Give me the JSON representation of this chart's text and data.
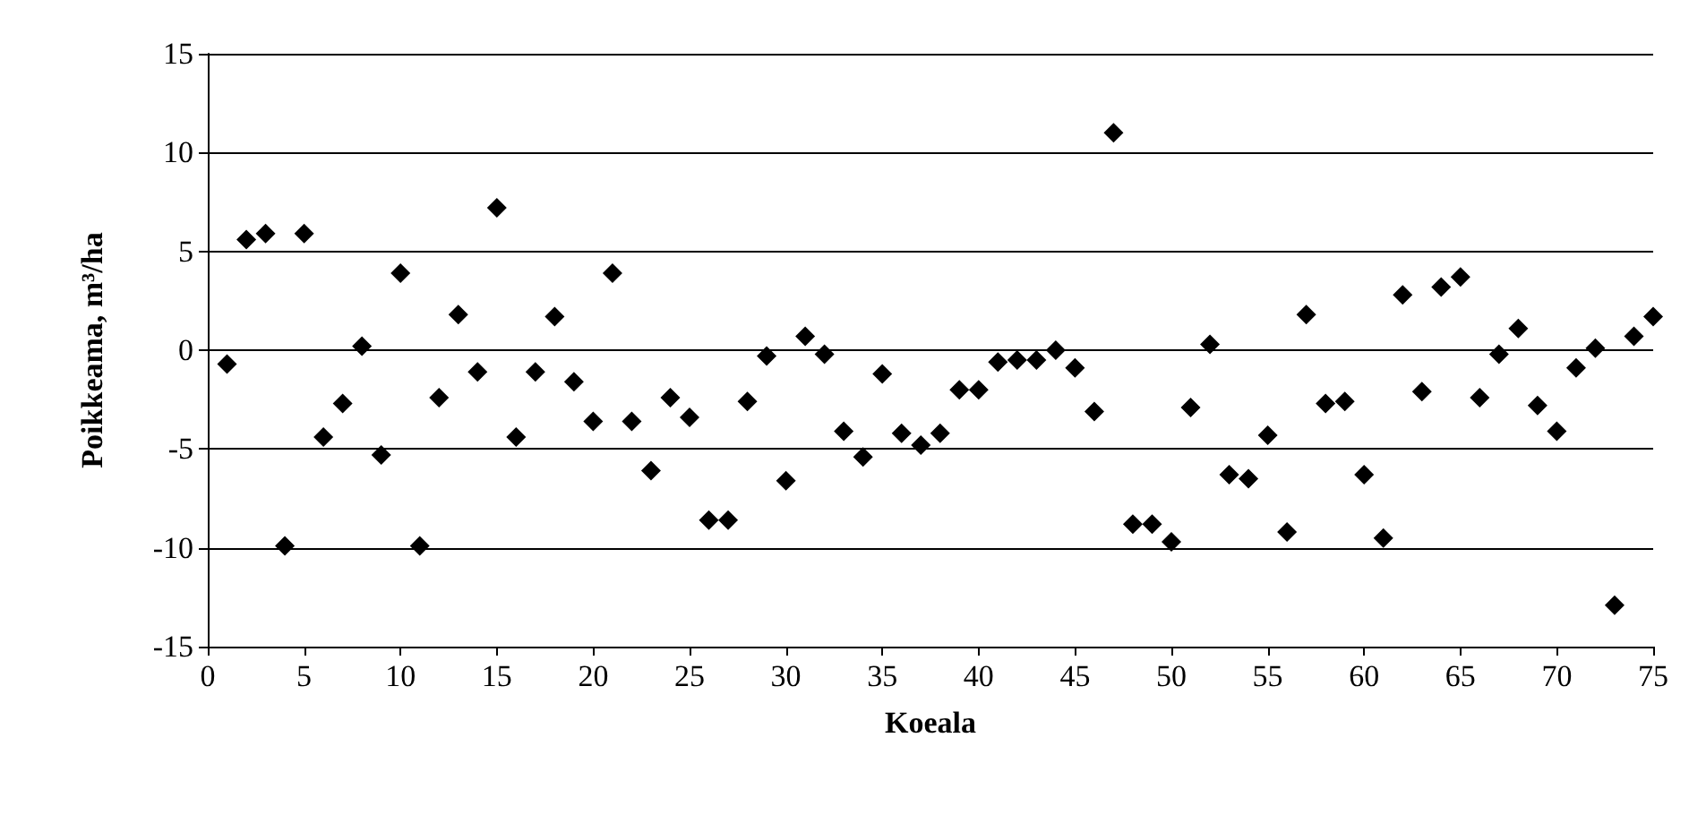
{
  "chart_data": {
    "type": "scatter",
    "xlabel": "Koeala",
    "ylabel": "Poikkeama, m³/ha",
    "x": [
      1,
      2,
      3,
      4,
      5,
      6,
      7,
      8,
      9,
      10,
      11,
      12,
      13,
      14,
      15,
      16,
      17,
      18,
      19,
      20,
      21,
      22,
      23,
      24,
      25,
      26,
      27,
      28,
      29,
      30,
      31,
      32,
      33,
      34,
      35,
      36,
      37,
      38,
      39,
      40,
      41,
      42,
      43,
      44,
      45,
      46,
      47,
      48,
      49,
      50,
      51,
      52,
      53,
      54,
      55,
      56,
      57,
      58,
      59,
      60,
      61,
      62,
      63,
      64,
      65,
      66,
      67,
      68,
      69,
      70,
      71,
      72,
      73,
      74,
      75
    ],
    "values": [
      -0.7,
      5.6,
      5.9,
      -9.9,
      5.9,
      -4.4,
      -2.7,
      0.2,
      -5.3,
      3.9,
      -9.9,
      -2.4,
      1.8,
      -1.1,
      7.2,
      -4.4,
      -1.1,
      1.7,
      -1.6,
      -3.6,
      3.9,
      -3.6,
      -6.1,
      -2.4,
      -3.4,
      -8.6,
      -8.6,
      -2.6,
      -0.3,
      -6.6,
      0.7,
      -0.2,
      -4.1,
      -5.4,
      -1.2,
      -4.2,
      -4.8,
      -4.2,
      -2.0,
      -2.0,
      -0.6,
      -0.5,
      -0.5,
      0.0,
      -0.9,
      -3.1,
      11.0,
      -8.8,
      -8.8,
      -9.7,
      -2.9,
      0.3,
      -6.3,
      -6.5,
      -4.3,
      -9.2,
      1.8,
      -2.7,
      -2.6,
      -6.3,
      -9.5,
      2.8,
      -2.1,
      3.2,
      3.7,
      -2.4,
      -0.2,
      1.1,
      -2.8,
      -4.1,
      -0.9,
      0.1,
      -12.9,
      0.7,
      1.7
    ],
    "color": "#000000",
    "marker": "diamond",
    "grid": "y",
    "xlim": [
      0,
      75
    ],
    "xticks": [
      0,
      5,
      10,
      15,
      20,
      25,
      30,
      35,
      40,
      45,
      50,
      55,
      60,
      65,
      70,
      75
    ],
    "ylim": [
      -15,
      15
    ],
    "yticks": [
      -15,
      -10,
      -5,
      0,
      5,
      10,
      15
    ]
  }
}
